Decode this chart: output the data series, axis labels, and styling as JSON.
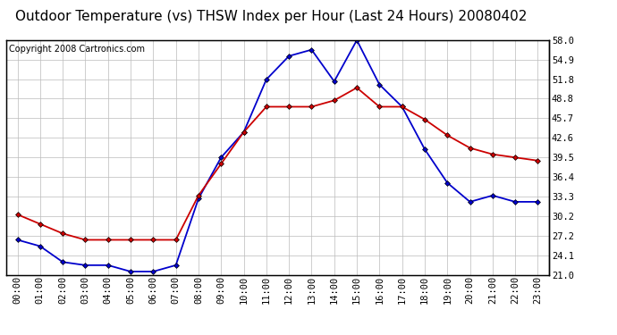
{
  "title": "Outdoor Temperature (vs) THSW Index per Hour (Last 24 Hours) 20080402",
  "copyright": "Copyright 2008 Cartronics.com",
  "hours": [
    "00:00",
    "01:00",
    "02:00",
    "03:00",
    "04:00",
    "05:00",
    "06:00",
    "07:00",
    "08:00",
    "09:00",
    "10:00",
    "11:00",
    "12:00",
    "13:00",
    "14:00",
    "15:00",
    "16:00",
    "17:00",
    "18:00",
    "19:00",
    "20:00",
    "21:00",
    "22:00",
    "23:00"
  ],
  "blue_data": [
    26.5,
    25.5,
    23.0,
    22.5,
    22.5,
    21.5,
    21.5,
    22.5,
    33.0,
    39.5,
    43.5,
    51.8,
    55.5,
    56.5,
    51.5,
    58.0,
    51.0,
    47.5,
    40.8,
    35.5,
    32.5,
    33.5,
    32.5,
    32.5
  ],
  "red_data": [
    30.5,
    29.0,
    27.5,
    26.5,
    26.5,
    26.5,
    26.5,
    26.5,
    33.5,
    38.5,
    43.5,
    47.5,
    47.5,
    47.5,
    48.5,
    50.5,
    47.5,
    47.5,
    45.5,
    43.0,
    41.0,
    40.0,
    39.5,
    39.0
  ],
  "blue_color": "#0000cc",
  "red_color": "#cc0000",
  "bg_color": "#ffffff",
  "plot_bg_color": "#ffffff",
  "grid_color": "#bbbbbb",
  "ylim_min": 21.0,
  "ylim_max": 58.0,
  "yticks": [
    21.0,
    24.1,
    27.2,
    30.2,
    33.3,
    36.4,
    39.5,
    42.6,
    45.7,
    48.8,
    51.8,
    54.9,
    58.0
  ],
  "title_fontsize": 11,
  "copyright_fontsize": 7,
  "tick_fontsize": 7.5,
  "marker": "D",
  "marker_size": 3,
  "line_width": 1.3
}
